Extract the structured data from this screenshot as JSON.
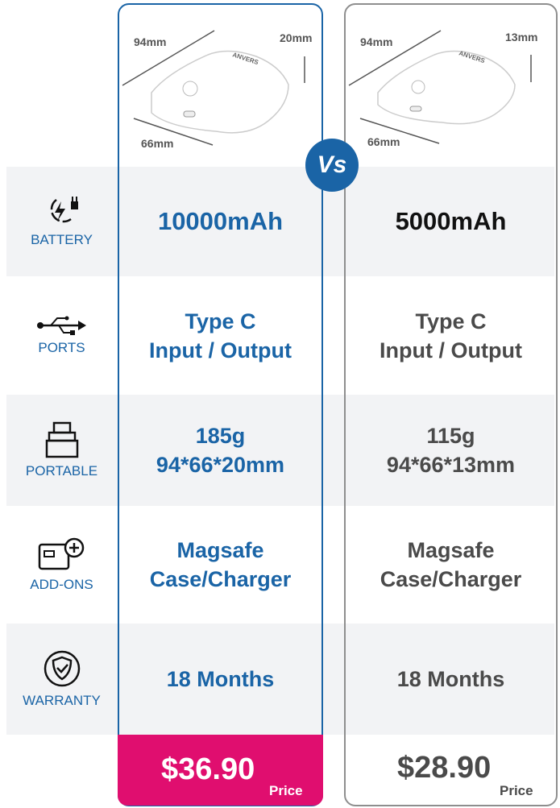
{
  "colors": {
    "accent": "#1a64a6",
    "price_highlight": "#e00e6f",
    "band": "#f2f3f5"
  },
  "vs_label": "Vs",
  "products": [
    {
      "dims": {
        "length": "94mm",
        "width": "66mm",
        "height": "20mm"
      },
      "brand": "ANVERS",
      "battery": "10000mAh",
      "ports": [
        "Type C",
        "Input / Output"
      ],
      "portable": [
        "185g",
        "94*66*20mm"
      ],
      "addons": [
        "Magsafe",
        "Case/Charger"
      ],
      "warranty": "18 Months",
      "price": "$36.90",
      "price_label": "Price"
    },
    {
      "dims": {
        "length": "94mm",
        "width": "66mm",
        "height": "13mm"
      },
      "brand": "ANVERS",
      "battery": "5000mAh",
      "ports": [
        "Type C",
        "Input / Output"
      ],
      "portable": [
        "115g",
        "94*66*13mm"
      ],
      "addons": [
        "Magsafe",
        "Case/Charger"
      ],
      "warranty": "18 Months",
      "price": "$28.90",
      "price_label": "Price"
    }
  ],
  "rows": [
    {
      "label": "BATTERY",
      "icon": "battery-charge-icon"
    },
    {
      "label": "PORTS",
      "icon": "usb-icon"
    },
    {
      "label": "PORTABLE",
      "icon": "power-bank-icon"
    },
    {
      "label": "ADD-ONS",
      "icon": "add-on-icon"
    },
    {
      "label": "WARRANTY",
      "icon": "shield-check-icon"
    }
  ]
}
